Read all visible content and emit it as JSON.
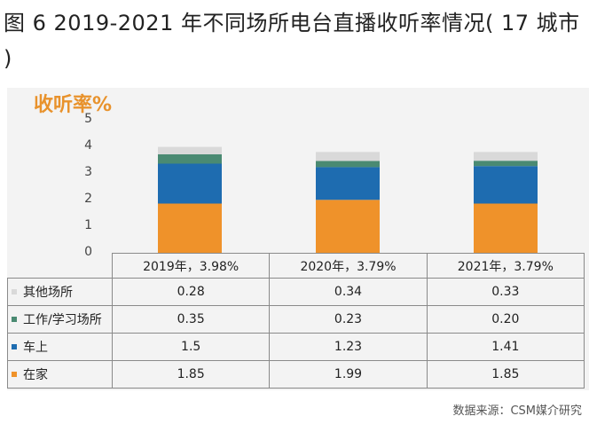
{
  "title": "图 6 2019-2021 年不同场所电台直播收听率情况( 17 城市 )",
  "source": "数据来源：CSM媒介研究",
  "chart_data": {
    "type": "bar",
    "stacked": true,
    "ylabel": "收听率%",
    "ylim": [
      0,
      5
    ],
    "yticks": [
      "5",
      "4",
      "3",
      "2",
      "1",
      "0"
    ],
    "categories": [
      "2019年，3.98%",
      "2020年，3.79%",
      "2021年，3.79%"
    ],
    "series": [
      {
        "name": "其他场所",
        "color": "#d9d9d9",
        "values": [
          0.28,
          0.34,
          0.33
        ],
        "labels": [
          "0.28",
          "0.34",
          "0.33"
        ]
      },
      {
        "name": "工作/学习场所",
        "color": "#4a8a72",
        "values": [
          0.35,
          0.23,
          0.2
        ],
        "labels": [
          "0.35",
          "0.23",
          "0.20"
        ]
      },
      {
        "name": "车上",
        "color": "#1e6cb0",
        "values": [
          1.5,
          1.23,
          1.41
        ],
        "labels": [
          "1.5",
          "1.23",
          "1.41"
        ]
      },
      {
        "name": "在家",
        "color": "#ef922a",
        "values": [
          1.85,
          1.99,
          1.85
        ],
        "labels": [
          "1.85",
          "1.99",
          "1.85"
        ]
      }
    ]
  }
}
